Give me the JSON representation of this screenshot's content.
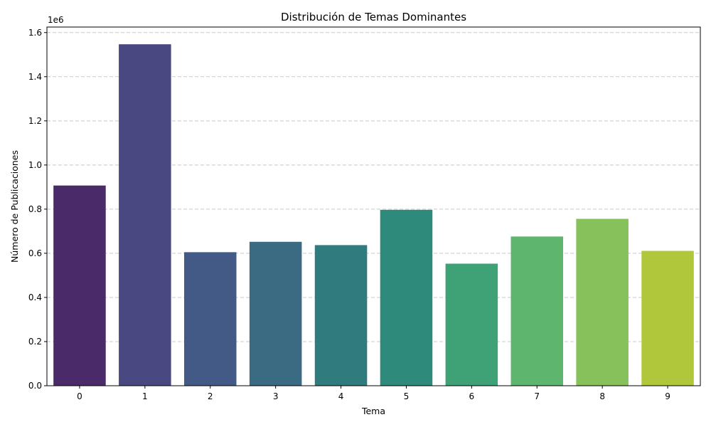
{
  "chart_data": {
    "type": "bar",
    "title": "Distribución de Temas Dominantes",
    "xlabel": "Tema",
    "ylabel": "Número de Publicaciones",
    "y_offset_label": "1e6",
    "categories": [
      "0",
      "1",
      "2",
      "3",
      "4",
      "5",
      "6",
      "7",
      "8",
      "9"
    ],
    "values": [
      907000,
      1547000,
      605000,
      652000,
      637000,
      797000,
      553000,
      676000,
      756000,
      611000
    ],
    "ylim": [
      0,
      1625000
    ],
    "yticks": [
      0,
      200000,
      400000,
      600000,
      800000,
      1000000,
      1200000,
      1400000,
      1600000
    ],
    "ytick_labels": [
      "0.0",
      "0.2",
      "0.4",
      "0.6",
      "0.8",
      "1.0",
      "1.2",
      "1.4",
      "1.6"
    ],
    "grid": {
      "axis": "y",
      "style": "dashed"
    },
    "colors": [
      "#4a2a68",
      "#4a4880",
      "#435a87",
      "#3a6b83",
      "#2f7b7e",
      "#2e8b7b",
      "#3fa276",
      "#5db56e",
      "#87c15c",
      "#b1c73b"
    ]
  }
}
